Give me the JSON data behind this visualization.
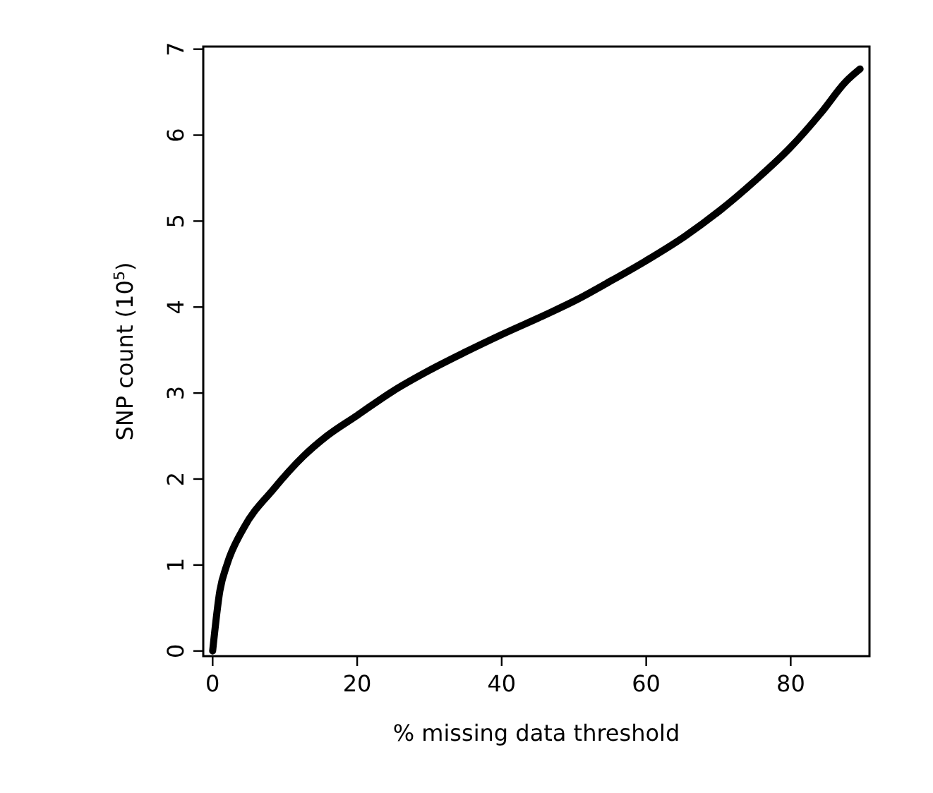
{
  "chart_data": {
    "type": "line",
    "xlabel": "% missing data threshold",
    "ylabel": "SNP count (10$^{5}$)",
    "x": [
      0,
      1,
      2,
      4.3,
      8.4,
      12.5,
      15.8,
      20,
      24.9,
      29.9,
      34.8,
      40,
      46.3,
      50.5,
      54.6,
      60,
      65.3,
      70.3,
      75.2,
      80,
      84.3,
      87.6,
      89.6
    ],
    "series": [
      {
        "color": "#000000",
        "values": [
          0,
          0.7,
          1.01,
          1.43,
          1.88,
          2.26,
          2.5,
          2.74,
          3.02,
          3.26,
          3.47,
          3.68,
          3.92,
          4.09,
          4.28,
          4.54,
          4.82,
          5.13,
          5.48,
          5.86,
          6.27,
          6.62,
          6.77
        ]
      }
    ],
    "xlim": [
      -1.3,
      90.9
    ],
    "ylim": [
      -0.06,
      7.03
    ],
    "xticks": [
      0,
      20,
      40,
      60,
      80
    ],
    "yticks": [
      0,
      1,
      2,
      3,
      4,
      5,
      6,
      7
    ],
    "grid": false,
    "marker": "none",
    "line_style": "solid"
  }
}
